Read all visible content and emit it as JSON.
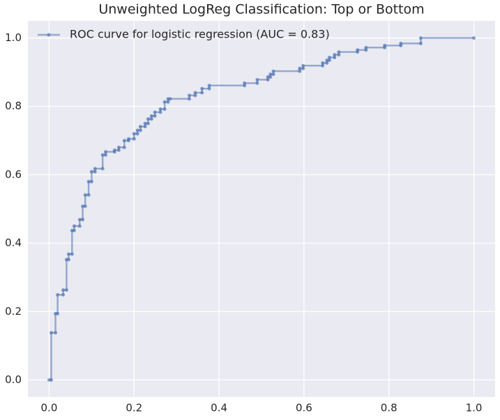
{
  "chart_data": {
    "type": "line",
    "title": "Unweighted LogReg Classification: Top or Bottom",
    "x": [
      0,
      0.005,
      0.005,
      0.015,
      0.015,
      0.02,
      0.02,
      0.033,
      0.033,
      0.041,
      0.041,
      0.046,
      0.046,
      0.054,
      0.054,
      0.059,
      0.059,
      0.072,
      0.072,
      0.079,
      0.079,
      0.085,
      0.085,
      0.093,
      0.093,
      0.1,
      0.1,
      0.108,
      0.108,
      0.126,
      0.126,
      0.133,
      0.133,
      0.154,
      0.154,
      0.164,
      0.164,
      0.177,
      0.177,
      0.187,
      0.187,
      0.2,
      0.2,
      0.208,
      0.208,
      0.215,
      0.215,
      0.226,
      0.226,
      0.233,
      0.233,
      0.241,
      0.241,
      0.249,
      0.249,
      0.262,
      0.262,
      0.272,
      0.272,
      0.28,
      0.28,
      0.285,
      0.33,
      0.33,
      0.344,
      0.344,
      0.36,
      0.36,
      0.377,
      0.377,
      0.46,
      0.46,
      0.49,
      0.49,
      0.515,
      0.515,
      0.521,
      0.521,
      0.528,
      0.528,
      0.59,
      0.59,
      0.598,
      0.598,
      0.644,
      0.644,
      0.654,
      0.654,
      0.66,
      0.66,
      0.672,
      0.672,
      0.682,
      0.682,
      0.726,
      0.726,
      0.746,
      0.746,
      0.79,
      0.79,
      0.828,
      0.828,
      0.875,
      0.875,
      1.0
    ],
    "series": [
      {
        "name": "ROC curve for logistic regression (AUC = 0.83)",
        "color": "#4c72b0",
        "values": [
          0,
          0,
          0.138,
          0.138,
          0.194,
          0.194,
          0.249,
          0.249,
          0.263,
          0.263,
          0.352,
          0.352,
          0.368,
          0.368,
          0.437,
          0.437,
          0.45,
          0.45,
          0.469,
          0.469,
          0.508,
          0.508,
          0.541,
          0.541,
          0.58,
          0.58,
          0.609,
          0.609,
          0.618,
          0.618,
          0.658,
          0.658,
          0.667,
          0.667,
          0.672,
          0.672,
          0.68,
          0.68,
          0.7,
          0.7,
          0.705,
          0.705,
          0.72,
          0.72,
          0.73,
          0.73,
          0.741,
          0.741,
          0.75,
          0.75,
          0.763,
          0.763,
          0.772,
          0.772,
          0.783,
          0.783,
          0.792,
          0.792,
          0.813,
          0.813,
          0.822,
          0.822,
          0.822,
          0.832,
          0.832,
          0.84,
          0.84,
          0.852,
          0.852,
          0.861,
          0.861,
          0.868,
          0.868,
          0.878,
          0.878,
          0.886,
          0.886,
          0.894,
          0.894,
          0.903,
          0.903,
          0.911,
          0.911,
          0.919,
          0.919,
          0.927,
          0.927,
          0.935,
          0.935,
          0.943,
          0.943,
          0.951,
          0.951,
          0.959,
          0.959,
          0.965,
          0.965,
          0.972,
          0.972,
          0.978,
          0.978,
          0.984,
          0.984,
          1.0,
          1.0
        ]
      }
    ],
    "xlim": [
      -0.05,
      1.05
    ],
    "ylim": [
      -0.05,
      1.05
    ],
    "xticks": [
      {
        "value": 0,
        "label": "0.0"
      },
      {
        "value": 0.2,
        "label": "0.2"
      },
      {
        "value": 0.4,
        "label": "0.4"
      },
      {
        "value": 0.6,
        "label": "0.6"
      },
      {
        "value": 0.8,
        "label": "0.8"
      },
      {
        "value": 1,
        "label": "1.0"
      }
    ],
    "yticks": [
      {
        "value": 0,
        "label": "0.0"
      },
      {
        "value": 0.2,
        "label": "0.2"
      },
      {
        "value": 0.4,
        "label": "0.4"
      },
      {
        "value": 0.6,
        "label": "0.6"
      },
      {
        "value": 0.8,
        "label": "0.8"
      },
      {
        "value": 1,
        "label": "1.0"
      }
    ],
    "grid": true,
    "legend": "upper left"
  }
}
